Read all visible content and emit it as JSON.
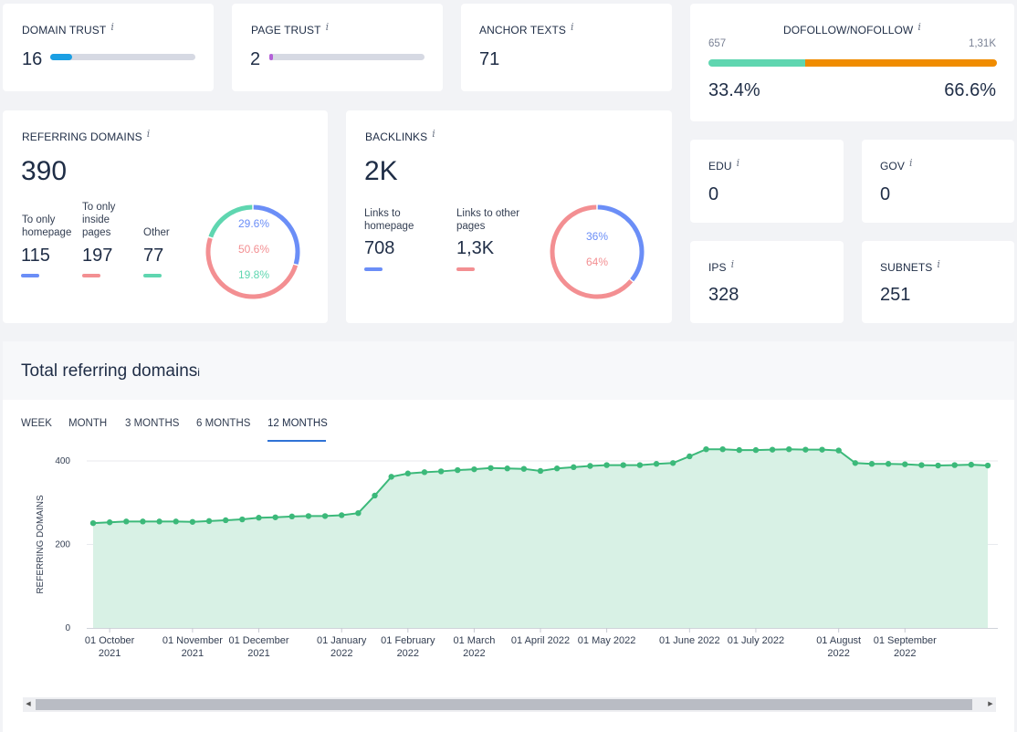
{
  "metrics": {
    "domain_trust": {
      "label": "DOMAIN TRUST",
      "value": "16",
      "fill": 0.12,
      "color": "#1b9fe3"
    },
    "page_trust": {
      "label": "PAGE TRUST",
      "value": "2",
      "fill": 0.02,
      "color": "#b461d8"
    },
    "anchor_texts": {
      "label": "ANCHOR TEXTS",
      "value": "71"
    },
    "dofollow": {
      "label": "DOFOLLOW/NOFOLLOW",
      "left_count": "657",
      "right_count": "1,31K",
      "left_pct": "33.4%",
      "right_pct": "66.6%",
      "fill": 0.334,
      "left_color": "#5fd6b0",
      "right_color": "#f08c00"
    },
    "edu": {
      "label": "EDU",
      "value": "0"
    },
    "gov": {
      "label": "GOV",
      "value": "0"
    },
    "ips": {
      "label": "IPS",
      "value": "328"
    },
    "subnets": {
      "label": "SUBNETS",
      "value": "251"
    }
  },
  "info_icon": "i",
  "referring_domains": {
    "label": "REFERRING DOMAINS",
    "value": "390",
    "items": [
      {
        "label_lines": [
          "To only",
          "homepage"
        ],
        "value": "115",
        "color": "#6b8ef7"
      },
      {
        "label_lines": [
          "To only",
          "inside",
          "pages"
        ],
        "value": "197",
        "color": "#f38f92"
      },
      {
        "label_lines": [
          "Other"
        ],
        "value": "77",
        "color": "#5fd6b0"
      }
    ],
    "donut": [
      {
        "pct": "29.6%",
        "fraction": 0.296,
        "color": "#6b8ef7"
      },
      {
        "pct": "50.6%",
        "fraction": 0.506,
        "color": "#f38f92"
      },
      {
        "pct": "19.8%",
        "fraction": 0.198,
        "color": "#5fd6b0"
      }
    ]
  },
  "backlinks": {
    "label": "BACKLINKS",
    "value": "2K",
    "items": [
      {
        "label_lines": [
          "Links to",
          "homepage"
        ],
        "value": "708",
        "color": "#6b8ef7"
      },
      {
        "label_lines": [
          "Links to other",
          "pages"
        ],
        "value": "1,3K",
        "color": "#f38f92"
      }
    ],
    "donut": [
      {
        "pct": "36%",
        "fraction": 0.36,
        "color": "#6b8ef7"
      },
      {
        "pct": "64%",
        "fraction": 0.64,
        "color": "#f38f92"
      }
    ]
  },
  "chart_section": {
    "title": "Total referring domains",
    "tabs": [
      "WEEK",
      "MONTH",
      "3 MONTHS",
      "6 MONTHS",
      "12 MONTHS"
    ],
    "active_tab": "12 MONTHS"
  },
  "chart_data": {
    "type": "area",
    "ylabel": "REFERRING DOMAINS",
    "ylim": [
      0,
      400
    ],
    "yticks": [
      "400",
      "200",
      "0"
    ],
    "line_color": "#3cb97a",
    "fill_color": "#d8f1e5",
    "xticks": [
      {
        "label": [
          "01 October",
          "2021"
        ],
        "index": 1
      },
      {
        "label": [
          "01 November",
          "2021"
        ],
        "index": 6
      },
      {
        "label": [
          "01 December",
          "2021"
        ],
        "index": 10
      },
      {
        "label": [
          "01 January",
          "2022"
        ],
        "index": 15
      },
      {
        "label": [
          "01 February",
          "2022"
        ],
        "index": 19
      },
      {
        "label": [
          "01 March",
          "2022"
        ],
        "index": 23
      },
      {
        "label": [
          "01 April 2022"
        ],
        "index": 27
      },
      {
        "label": [
          "01 May 2022"
        ],
        "index": 31
      },
      {
        "label": [
          "01 June 2022"
        ],
        "index": 36
      },
      {
        "label": [
          "01 July 2022"
        ],
        "index": 40
      },
      {
        "label": [
          "01 August",
          "2022"
        ],
        "index": 45
      },
      {
        "label": [
          "01 September",
          "2022"
        ],
        "index": 49
      }
    ],
    "values": [
      251,
      253,
      255,
      255,
      255,
      255,
      254,
      256,
      258,
      260,
      264,
      265,
      267,
      268,
      268,
      270,
      275,
      317,
      362,
      370,
      373,
      375,
      378,
      380,
      383,
      382,
      381,
      376,
      382,
      385,
      388,
      390,
      390,
      390,
      393,
      395,
      411,
      428,
      428,
      426,
      426,
      427,
      428,
      427,
      427,
      425,
      395,
      393,
      393,
      392,
      390,
      389,
      390,
      391,
      389
    ]
  },
  "scrollbar": {
    "left_arrow": "◀",
    "right_arrow": "▶"
  }
}
